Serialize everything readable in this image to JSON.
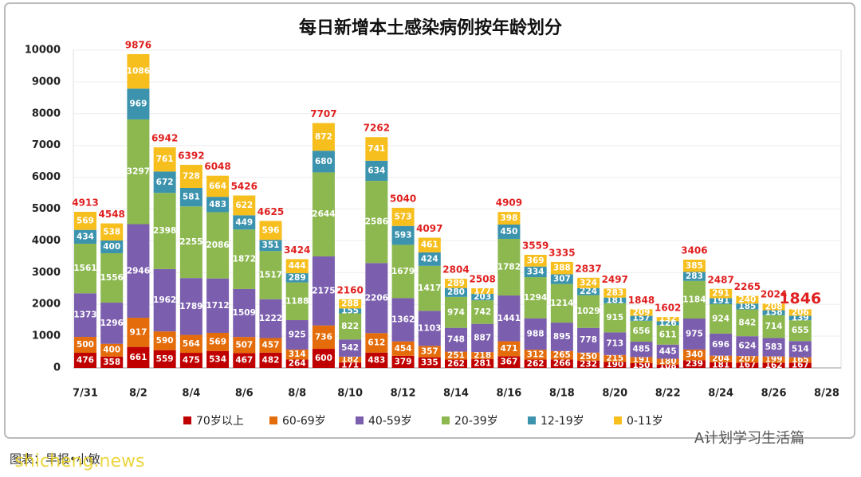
{
  "chart_data": {
    "type": "stacked_bar",
    "title": "每日新增本土感染病例按年龄划分",
    "categories": [
      "7/31",
      null,
      "8/2",
      null,
      "8/4",
      null,
      "8/6",
      null,
      "8/8",
      null,
      "8/10",
      null,
      "8/12",
      null,
      "8/14",
      null,
      "8/16",
      null,
      "8/18",
      null,
      "8/20",
      null,
      "8/22",
      null,
      "8/24",
      null,
      "8/26",
      null,
      "8/28"
    ],
    "series": [
      {
        "name": "70岁以上",
        "color": "#c00000",
        "values": [
          476,
          358,
          661,
          559,
          475,
          534,
          467,
          482,
          264,
          600,
          171,
          483,
          379,
          335,
          262,
          281,
          367,
          262,
          266,
          232,
          190,
          150,
          108,
          239,
          181,
          167,
          162,
          167,
          null
        ]
      },
      {
        "name": "60-69岁",
        "color": "#e46c0a",
        "values": [
          500,
          400,
          917,
          590,
          564,
          569,
          507,
          457,
          314,
          736,
          182,
          612,
          454,
          357,
          251,
          218,
          471,
          312,
          265,
          250,
          215,
          191,
          180,
          340,
          204,
          207,
          199,
          165,
          null
        ]
      },
      {
        "name": "40-59岁",
        "color": "#7b5eae",
        "values": [
          1373,
          1296,
          2946,
          1962,
          1789,
          1712,
          1509,
          1222,
          925,
          2175,
          542,
          2206,
          1362,
          1103,
          748,
          887,
          1441,
          988,
          895,
          778,
          713,
          485,
          445,
          975,
          696,
          624,
          583,
          514,
          null
        ]
      },
      {
        "name": "20-39岁",
        "color": "#8cb84f",
        "values": [
          1561,
          1556,
          3297,
          2398,
          2255,
          2086,
          1872,
          1517,
          1188,
          2644,
          822,
          2586,
          1679,
          1417,
          974,
          742,
          1782,
          1294,
          1214,
          1029,
          915,
          656,
          611,
          1184,
          924,
          842,
          714,
          655,
          null
        ]
      },
      {
        "name": "12-19岁",
        "color": "#3b93ae",
        "values": [
          434,
          400,
          969,
          672,
          581,
          483,
          449,
          351,
          289,
          680,
          155,
          634,
          593,
          424,
          280,
          203,
          450,
          334,
          307,
          224,
          181,
          157,
          126,
          283,
          191,
          185,
          158,
          139,
          null
        ]
      },
      {
        "name": "0-11岁",
        "color": "#f7bf1e",
        "values": [
          569,
          538,
          1086,
          761,
          728,
          664,
          622,
          596,
          444,
          872,
          288,
          741,
          573,
          461,
          289,
          177,
          398,
          369,
          388,
          324,
          283,
          209,
          132,
          385,
          291,
          240,
          208,
          206,
          null
        ]
      }
    ],
    "totals": [
      4913,
      4548,
      9876,
      6942,
      6392,
      6048,
      5426,
      4625,
      3424,
      7707,
      2160,
      7262,
      5040,
      4097,
      2804,
      2508,
      4909,
      3559,
      3335,
      2837,
      2497,
      1848,
      1602,
      3406,
      2487,
      2265,
      2024,
      1846,
      null
    ],
    "ylim": [
      0,
      10000
    ],
    "yticks": [
      0,
      1000,
      2000,
      3000,
      4000,
      5000,
      6000,
      7000,
      8000,
      9000,
      10000
    ],
    "grid": true,
    "legend": "bottom",
    "source": "图表：早报•小敏",
    "watermarks": [
      "A计划学习生活篇",
      "shicheng.news"
    ]
  }
}
